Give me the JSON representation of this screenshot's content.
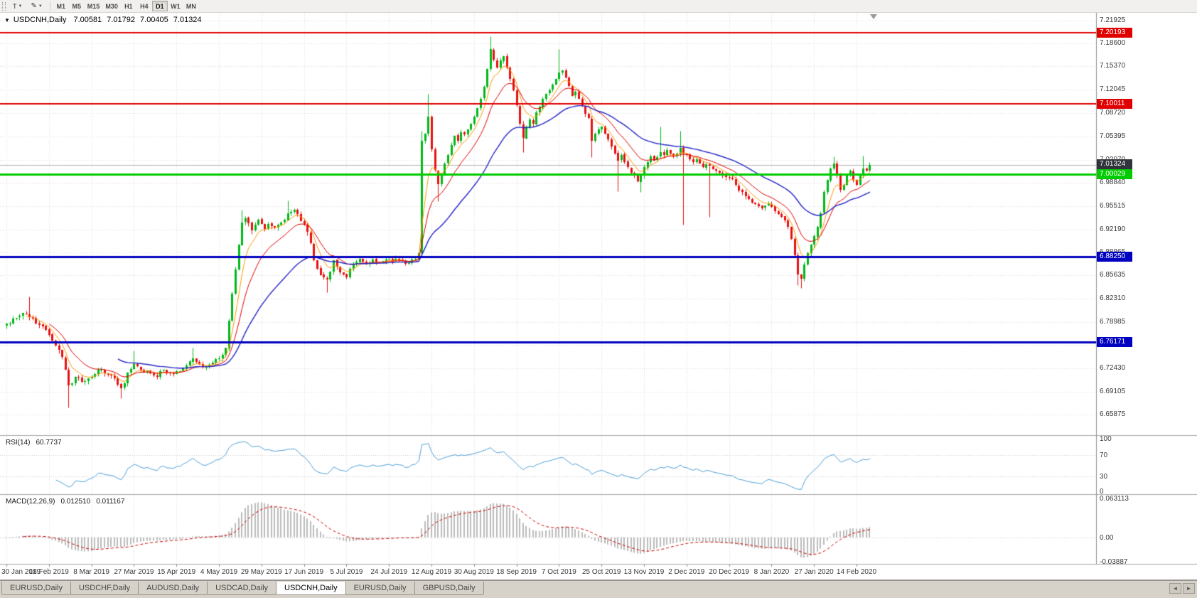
{
  "toolbar": {
    "templates_label": "T",
    "draw_tool_icon": "pencil-icon",
    "timeframes": [
      "M1",
      "M5",
      "M15",
      "M30",
      "H1",
      "H4",
      "D1",
      "W1",
      "MN"
    ],
    "active_timeframe": "D1"
  },
  "window": {
    "menu_icon": "▼",
    "symbol_period": "USDCNH,Daily",
    "open": "7.00581",
    "high": "7.01792",
    "low": "7.00405",
    "close": "7.01324"
  },
  "price_scale": {
    "labels": [
      "7.21925",
      "7.18600",
      "7.15370",
      "7.12045",
      "7.08720",
      "7.05395",
      "7.02070",
      "6.98840",
      "6.95515",
      "6.92190",
      "6.88865",
      "6.85635",
      "6.82310",
      "6.78985",
      "6.75755",
      "6.72430",
      "6.69105",
      "6.65875"
    ]
  },
  "time_scale": {
    "labels": [
      "30 Jan 2019",
      "18 Feb 2019",
      "8 Mar 2019",
      "27 Mar 2019",
      "15 Apr 2019",
      "4 May 2019",
      "29 May 2019",
      "17 Jun 2019",
      "5 Jul 2019",
      "24 Jul 2019",
      "12 Aug 2019",
      "30 Aug 2019",
      "18 Sep 2019",
      "7 Oct 2019",
      "25 Oct 2019",
      "13 Nov 2019",
      "2 Dec 2019",
      "20 Dec 2019",
      "8 Jan 2020",
      "27 Jan 2020",
      "14 Feb 2020"
    ]
  },
  "indicators": {
    "rsi": {
      "label": "RSI(14)",
      "value": "60.7737",
      "scale": [
        "100",
        "70",
        "30",
        "0"
      ],
      "levels": [
        70,
        30
      ]
    },
    "macd": {
      "label": "MACD(12,26,9)",
      "value": "0.012510",
      "signal_value": "0.011167",
      "scale_max": "0.063113",
      "scale_zero": "0.00",
      "scale_min": "-0.03887"
    }
  },
  "tabs": [
    "EURUSD,Daily",
    "USDCHF,Daily",
    "AUDUSD,Daily",
    "USDCAD,Daily",
    "USDCNH,Daily",
    "EURUSD,Daily",
    "GBPUSD,Daily"
  ],
  "active_tab_index": 4,
  "tab_arrows": {
    "left": "◄",
    "right": "►"
  },
  "chart_data": {
    "type": "candlestick",
    "symbol": "USDCNH",
    "period": "Daily",
    "visible_price_range": [
      6.629,
      7.23
    ],
    "bar_count": 265,
    "last_bar": {
      "open": 7.00581,
      "high": 7.01792,
      "low": 7.00405,
      "close": 7.01324
    },
    "close_anchors": [
      [
        0,
        6.788
      ],
      [
        3,
        6.796
      ],
      [
        6,
        6.802
      ],
      [
        8,
        6.795
      ],
      [
        10,
        6.786
      ],
      [
        13,
        6.772
      ],
      [
        15,
        6.756
      ],
      [
        17,
        6.74
      ],
      [
        19,
        6.7
      ],
      [
        21,
        6.712
      ],
      [
        24,
        6.706
      ],
      [
        26,
        6.712
      ],
      [
        28,
        6.722
      ],
      [
        30,
        6.717
      ],
      [
        33,
        6.71
      ],
      [
        35,
        6.696
      ],
      [
        37,
        6.718
      ],
      [
        39,
        6.73
      ],
      [
        41,
        6.722
      ],
      [
        44,
        6.717
      ],
      [
        46,
        6.712
      ],
      [
        48,
        6.722
      ],
      [
        50,
        6.717
      ],
      [
        52,
        6.72
      ],
      [
        55,
        6.728
      ],
      [
        57,
        6.738
      ],
      [
        59,
        6.73
      ],
      [
        61,
        6.726
      ],
      [
        63,
        6.732
      ],
      [
        65,
        6.738
      ],
      [
        66,
        6.743
      ],
      [
        67,
        6.753
      ],
      [
        68,
        6.792
      ],
      [
        69,
        6.83
      ],
      [
        70,
        6.865
      ],
      [
        71,
        6.9
      ],
      [
        72,
        6.932
      ],
      [
        73,
        6.938
      ],
      [
        74,
        6.931
      ],
      [
        75,
        6.92
      ],
      [
        76,
        6.928
      ],
      [
        77,
        6.936
      ],
      [
        78,
        6.93
      ],
      [
        79,
        6.922
      ],
      [
        80,
        6.93
      ],
      [
        82,
        6.924
      ],
      [
        84,
        6.932
      ],
      [
        86,
        6.945
      ],
      [
        88,
        6.95
      ],
      [
        89,
        6.944
      ],
      [
        90,
        6.934
      ],
      [
        92,
        6.918
      ],
      [
        93,
        6.902
      ],
      [
        94,
        6.878
      ],
      [
        95,
        6.866
      ],
      [
        96,
        6.857
      ],
      [
        98,
        6.851
      ],
      [
        100,
        6.878
      ],
      [
        101,
        6.869
      ],
      [
        102,
        6.861
      ],
      [
        104,
        6.854
      ],
      [
        106,
        6.872
      ],
      [
        108,
        6.88
      ],
      [
        110,
        6.873
      ],
      [
        112,
        6.879
      ],
      [
        114,
        6.875
      ],
      [
        116,
        6.879
      ],
      [
        118,
        6.877
      ],
      [
        120,
        6.879
      ],
      [
        122,
        6.873
      ],
      [
        124,
        6.879
      ],
      [
        126,
        6.888
      ],
      [
        127,
        7.048
      ],
      [
        128,
        7.058
      ],
      [
        129,
        7.082
      ],
      [
        130,
        7.036
      ],
      [
        131,
        7.006
      ],
      [
        132,
        6.986
      ],
      [
        133,
        7.0
      ],
      [
        134,
        7.016
      ],
      [
        135,
        7.028
      ],
      [
        136,
        7.042
      ],
      [
        137,
        7.055
      ],
      [
        138,
        7.048
      ],
      [
        139,
        7.06
      ],
      [
        140,
        7.057
      ],
      [
        141,
        7.064
      ],
      [
        142,
        7.072
      ],
      [
        143,
        7.082
      ],
      [
        144,
        7.094
      ],
      [
        145,
        7.108
      ],
      [
        146,
        7.125
      ],
      [
        147,
        7.15
      ],
      [
        148,
        7.178
      ],
      [
        149,
        7.163
      ],
      [
        150,
        7.152
      ],
      [
        151,
        7.162
      ],
      [
        152,
        7.168
      ],
      [
        153,
        7.152
      ],
      [
        154,
        7.136
      ],
      [
        155,
        7.12
      ],
      [
        156,
        7.098
      ],
      [
        157,
        7.072
      ],
      [
        158,
        7.052
      ],
      [
        159,
        7.068
      ],
      [
        160,
        7.078
      ],
      [
        161,
        7.072
      ],
      [
        162,
        7.088
      ],
      [
        163,
        7.096
      ],
      [
        164,
        7.108
      ],
      [
        165,
        7.115
      ],
      [
        166,
        7.12
      ],
      [
        167,
        7.128
      ],
      [
        168,
        7.136
      ],
      [
        169,
        7.145
      ],
      [
        170,
        7.148
      ],
      [
        171,
        7.138
      ],
      [
        172,
        7.126
      ],
      [
        173,
        7.112
      ],
      [
        174,
        7.118
      ],
      [
        175,
        7.108
      ],
      [
        176,
        7.098
      ],
      [
        177,
        7.086
      ],
      [
        178,
        7.08
      ],
      [
        179,
        7.048
      ],
      [
        180,
        7.058
      ],
      [
        181,
        7.064
      ],
      [
        182,
        7.068
      ],
      [
        183,
        7.058
      ],
      [
        184,
        7.05
      ],
      [
        185,
        7.04
      ],
      [
        186,
        7.03
      ],
      [
        187,
        7.02
      ],
      [
        188,
        7.028
      ],
      [
        189,
        7.018
      ],
      [
        190,
        7.01
      ],
      [
        191,
        7.002
      ],
      [
        192,
        6.998
      ],
      [
        193,
        6.99
      ],
      [
        194,
        6.998
      ],
      [
        195,
        7.01
      ],
      [
        196,
        7.018
      ],
      [
        197,
        7.026
      ],
      [
        198,
        7.02
      ],
      [
        199,
        7.025
      ],
      [
        200,
        7.032
      ],
      [
        201,
        7.028
      ],
      [
        202,
        7.035
      ],
      [
        203,
        7.03
      ],
      [
        204,
        7.026
      ],
      [
        205,
        7.03
      ],
      [
        206,
        7.038
      ],
      [
        207,
        7.03
      ],
      [
        208,
        7.028
      ],
      [
        209,
        7.022
      ],
      [
        210,
        7.018
      ],
      [
        211,
        7.022
      ],
      [
        212,
        7.016
      ],
      [
        213,
        7.01
      ],
      [
        214,
        7.014
      ],
      [
        215,
        7.012
      ],
      [
        217,
        7.005
      ],
      [
        219,
        7.0
      ],
      [
        221,
        6.995
      ],
      [
        223,
        6.985
      ],
      [
        225,
        6.975
      ],
      [
        227,
        6.965
      ],
      [
        229,
        6.958
      ],
      [
        231,
        6.952
      ],
      [
        233,
        6.958
      ],
      [
        234,
        6.954
      ],
      [
        235,
        6.948
      ],
      [
        236,
        6.944
      ],
      [
        237,
        6.94
      ],
      [
        238,
        6.935
      ],
      [
        239,
        6.925
      ],
      [
        240,
        6.908
      ],
      [
        241,
        6.885
      ],
      [
        242,
        6.858
      ],
      [
        243,
        6.852
      ],
      [
        244,
        6.872
      ],
      [
        245,
        6.888
      ],
      [
        246,
        6.9
      ],
      [
        247,
        6.912
      ],
      [
        248,
        6.925
      ],
      [
        249,
        6.945
      ],
      [
        250,
        6.975
      ],
      [
        251,
        6.992
      ],
      [
        252,
        7.008
      ],
      [
        253,
        7.015
      ],
      [
        254,
        6.998
      ],
      [
        255,
        6.978
      ],
      [
        256,
        6.985
      ],
      [
        257,
        6.998
      ],
      [
        258,
        7.005
      ],
      [
        259,
        6.992
      ],
      [
        260,
        6.985
      ],
      [
        261,
        6.998
      ],
      [
        262,
        7.008
      ],
      [
        263,
        7.0058
      ],
      [
        264,
        7.01324
      ]
    ],
    "wick_overrides": [
      {
        "i": 7,
        "high": 6.826
      },
      {
        "i": 19,
        "low": 6.668
      },
      {
        "i": 35,
        "low": 6.682
      },
      {
        "i": 39,
        "high": 6.749
      },
      {
        "i": 57,
        "high": 6.753
      },
      {
        "i": 72,
        "high": 6.95
      },
      {
        "i": 86,
        "high": 6.963
      },
      {
        "i": 98,
        "low": 6.832
      },
      {
        "i": 127,
        "low": 6.886,
        "high": 7.062
      },
      {
        "i": 129,
        "high": 7.115
      },
      {
        "i": 132,
        "low": 6.962
      },
      {
        "i": 148,
        "high": 7.1965
      },
      {
        "i": 158,
        "low": 7.032
      },
      {
        "i": 169,
        "high": 7.178
      },
      {
        "i": 179,
        "low": 7.025
      },
      {
        "i": 187,
        "low": 6.976
      },
      {
        "i": 194,
        "low": 6.975
      },
      {
        "i": 200,
        "high": 7.068
      },
      {
        "i": 206,
        "high": 7.062
      },
      {
        "i": 207,
        "low": 6.928
      },
      {
        "i": 215,
        "low": 6.94
      },
      {
        "i": 242,
        "low": 6.842
      },
      {
        "i": 243,
        "low": 6.838
      },
      {
        "i": 253,
        "high": 7.026
      },
      {
        "i": 262,
        "high": 7.027
      }
    ],
    "horizontal_levels": [
      {
        "price": 7.20193,
        "label": "7.20193",
        "color": "#e00000",
        "line_width": 2,
        "type": "resistance"
      },
      {
        "price": 7.10011,
        "label": "7.10011",
        "color": "#e00000",
        "line_width": 2,
        "type": "resistance"
      },
      {
        "price": 7.00029,
        "label": "7.00029",
        "color": "#00cc00",
        "line_width": 3,
        "type": "support"
      },
      {
        "price": 6.8825,
        "label": "6.88250",
        "color": "#0000c0",
        "line_width": 3,
        "type": "support"
      },
      {
        "price": 6.76171,
        "label": "6.76171",
        "color": "#0000c0",
        "line_width": 3,
        "type": "support"
      }
    ],
    "bid_line": {
      "price": 7.01324,
      "label": "7.01324",
      "badge_color": "#30343a",
      "line_color": "#b8b8b8"
    },
    "moving_averages": [
      {
        "period": 6,
        "color": "#ff9900"
      },
      {
        "period": 13,
        "color": "#e00000"
      },
      {
        "period": 34,
        "color": "#2424c8"
      }
    ],
    "candle_colors": {
      "up": "#00b818",
      "down": "#e81010"
    },
    "rsi": {
      "period": 14,
      "current": 60.7737,
      "color": "#4f9fd8",
      "range": [
        0,
        100
      ],
      "guides": [
        70,
        30
      ]
    },
    "macd": {
      "fast": 12,
      "slow": 26,
      "signal": 9,
      "current": 0.01251,
      "signal_current": 0.011167,
      "range": [
        -0.03887,
        0.063113
      ],
      "histogram_color": "#bcbcbc",
      "signal_color": "#cc0000"
    }
  }
}
